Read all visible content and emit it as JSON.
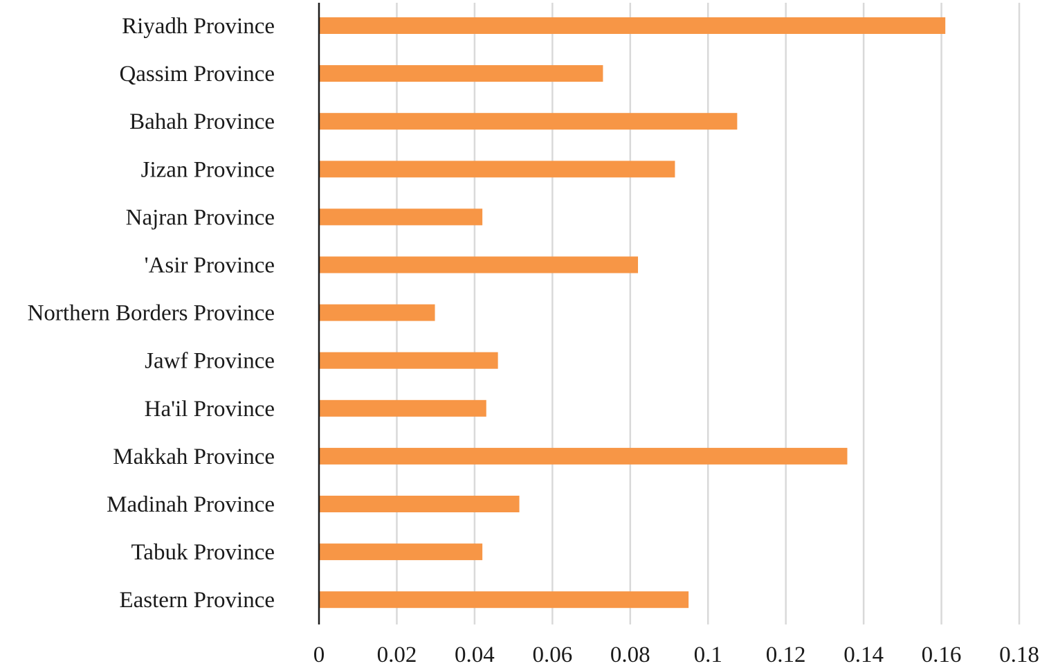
{
  "chart_data": {
    "type": "bar",
    "orientation": "horizontal",
    "title": "",
    "xlabel": "",
    "ylabel": "",
    "categories": [
      "Riyadh Province",
      "Qassim Province",
      "Bahah Province",
      "Jizan Province",
      "Najran Province",
      "'Asir Province",
      "Northern Borders Province",
      "Jawf Province",
      "Ha'il Province",
      "Makkah Province",
      "Madinah Province",
      "Tabuk Province",
      "Eastern Province"
    ],
    "values": [
      0.161,
      0.073,
      0.1075,
      0.0915,
      0.042,
      0.082,
      0.0298,
      0.046,
      0.043,
      0.1358,
      0.0515,
      0.042,
      0.095
    ],
    "xlim": [
      0,
      0.18
    ],
    "xticks": [
      "0",
      "0.02",
      "0.04",
      "0.06",
      "0.08",
      "0.1",
      "0.12",
      "0.14",
      "0.16",
      "0.18"
    ],
    "xtick_values": [
      0,
      0.02,
      0.04,
      0.06,
      0.08,
      0.1,
      0.12,
      0.14,
      0.16,
      0.18
    ],
    "grid": "vertical",
    "legend": "none",
    "bar_color": "#F79646"
  }
}
